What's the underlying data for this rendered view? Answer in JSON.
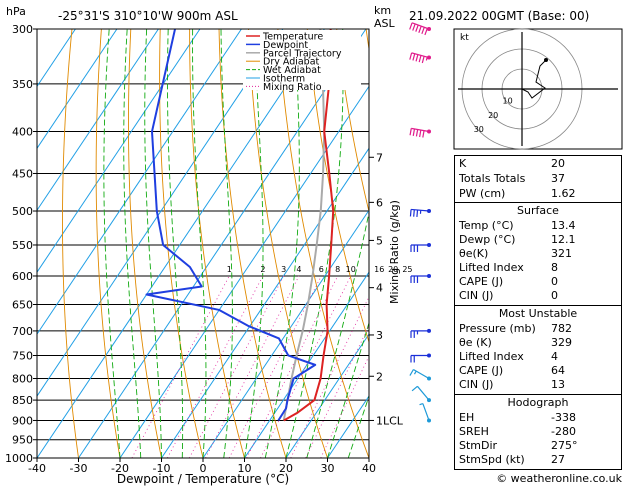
{
  "header": {
    "hpa_unit": "hPa",
    "location": "-25°31'S 310°10'W 900m ASL",
    "km_unit": "km",
    "asl_unit": "ASL",
    "datetime": "21.09.2022 00GMT (Base: 00)"
  },
  "footer": {
    "credit": "© weatheronline.co.uk"
  },
  "colors": {
    "temperature": "#dd2222",
    "dewpoint": "#1f3fe0",
    "parcel": "#aaaaaa",
    "dry_adiabat": "#e08a00",
    "wet_adiabat": "#11aa11",
    "isotherm": "#22a0e6",
    "mixing_ratio": "#e0209a",
    "wind": "#1a2fd8"
  },
  "chart_data": {
    "type": "line",
    "xlabel": "Dewpoint / Temperature (°C)",
    "ylabel": "Mixing Ratio (g/kg)",
    "x_ticks": [
      -40,
      -30,
      -20,
      -10,
      0,
      10,
      20,
      30,
      40
    ],
    "pressure_levels": [
      300,
      350,
      400,
      450,
      500,
      550,
      600,
      650,
      700,
      750,
      800,
      850,
      900,
      950,
      1000
    ],
    "altitude_km": [
      {
        "km": "1LCL",
        "p": 900
      },
      {
        "km": "2",
        "p": 795
      },
      {
        "km": "3",
        "p": 708
      },
      {
        "km": "4",
        "p": 620
      },
      {
        "km": "5",
        "p": 543
      },
      {
        "km": "6",
        "p": 488
      },
      {
        "km": "7",
        "p": 430
      }
    ],
    "mixing_ratio_labels": [
      "1",
      "2",
      "3",
      "4",
      "6",
      "8",
      "10",
      "16",
      "20",
      "25"
    ],
    "legend": [
      "Temperature",
      "Dewpoint",
      "Parcel Trajectory",
      "Dry Adiabat",
      "Wet Adiabat",
      "Isotherm",
      "Mixing Ratio"
    ],
    "series": [
      {
        "name": "Temperature",
        "points": [
          [
            900,
            13.4
          ],
          [
            880,
            15.5
          ],
          [
            850,
            17.5
          ],
          [
            800,
            15.5
          ],
          [
            750,
            12.5
          ],
          [
            700,
            9.5
          ],
          [
            650,
            5.0
          ],
          [
            600,
            1.0
          ],
          [
            550,
            -3.5
          ],
          [
            500,
            -8.5
          ],
          [
            450,
            -15.5
          ],
          [
            400,
            -23.5
          ],
          [
            350,
            -30.0
          ],
          [
            300,
            -38.5
          ]
        ]
      },
      {
        "name": "Dewpoint",
        "points": [
          [
            900,
            12.1
          ],
          [
            870,
            12.0
          ],
          [
            850,
            11.0
          ],
          [
            800,
            9.0
          ],
          [
            770,
            12.0
          ],
          [
            750,
            4.0
          ],
          [
            715,
            -1.0
          ],
          [
            690,
            -10.5
          ],
          [
            660,
            -20.0
          ],
          [
            632,
            -40.0
          ],
          [
            618,
            -28.0
          ],
          [
            585,
            -34.0
          ],
          [
            550,
            -44.0
          ],
          [
            500,
            -51.0
          ],
          [
            400,
            -65.0
          ],
          [
            300,
            -76.0
          ]
        ]
      },
      {
        "name": "Parcel Trajectory",
        "points": [
          [
            900,
            13.4
          ],
          [
            850,
            11.0
          ],
          [
            800,
            8.5
          ],
          [
            750,
            6.0
          ],
          [
            700,
            3.5
          ],
          [
            650,
            0.5
          ],
          [
            600,
            -3.0
          ],
          [
            550,
            -7.0
          ],
          [
            500,
            -11.5
          ],
          [
            450,
            -17.0
          ],
          [
            400,
            -23.5
          ],
          [
            350,
            -31.5
          ],
          [
            300,
            -41.0
          ]
        ]
      }
    ]
  },
  "hodograph": {
    "unit": "kt",
    "ring_labels": [
      "10",
      "20",
      "30"
    ]
  },
  "wind_barbs": [
    {
      "p": 300,
      "dir": 290,
      "spd": 60
    },
    {
      "p": 325,
      "dir": 285,
      "spd": 55
    },
    {
      "p": 400,
      "dir": 280,
      "spd": 50
    },
    {
      "p": 500,
      "dir": 275,
      "spd": 35
    },
    {
      "p": 550,
      "dir": 270,
      "spd": 30
    },
    {
      "p": 600,
      "dir": 270,
      "spd": 30
    },
    {
      "p": 700,
      "dir": 270,
      "spd": 25
    },
    {
      "p": 750,
      "dir": 270,
      "spd": 20
    },
    {
      "p": 800,
      "dir": 300,
      "spd": 15
    },
    {
      "p": 850,
      "dir": 320,
      "spd": 10
    },
    {
      "p": 900,
      "dir": 340,
      "spd": 5
    }
  ],
  "indices": {
    "top": [
      {
        "label": "K",
        "value": "20"
      },
      {
        "label": "Totals Totals",
        "value": "37"
      },
      {
        "label": "PW (cm)",
        "value": "1.62"
      }
    ],
    "surface_title": "Surface",
    "surface": [
      {
        "label": "Temp (°C)",
        "value": "13.4"
      },
      {
        "label": "Dewp (°C)",
        "value": "12.1"
      },
      {
        "label": "θe(K)",
        "value": "321"
      },
      {
        "label": "Lifted Index",
        "value": "8"
      },
      {
        "label": "CAPE (J)",
        "value": "0"
      },
      {
        "label": "CIN (J)",
        "value": "0"
      }
    ],
    "unstable_title": "Most Unstable",
    "unstable": [
      {
        "label": "Pressure (mb)",
        "value": "782"
      },
      {
        "label": "θe (K)",
        "value": "329"
      },
      {
        "label": "Lifted Index",
        "value": "4"
      },
      {
        "label": "CAPE (J)",
        "value": "64"
      },
      {
        "label": "CIN (J)",
        "value": "13"
      }
    ],
    "hodo_title": "Hodograph",
    "hodo": [
      {
        "label": "EH",
        "value": "-338"
      },
      {
        "label": "SREH",
        "value": "-280"
      },
      {
        "label": "StmDir",
        "value": "275°"
      },
      {
        "label": "StmSpd (kt)",
        "value": "27"
      }
    ]
  }
}
